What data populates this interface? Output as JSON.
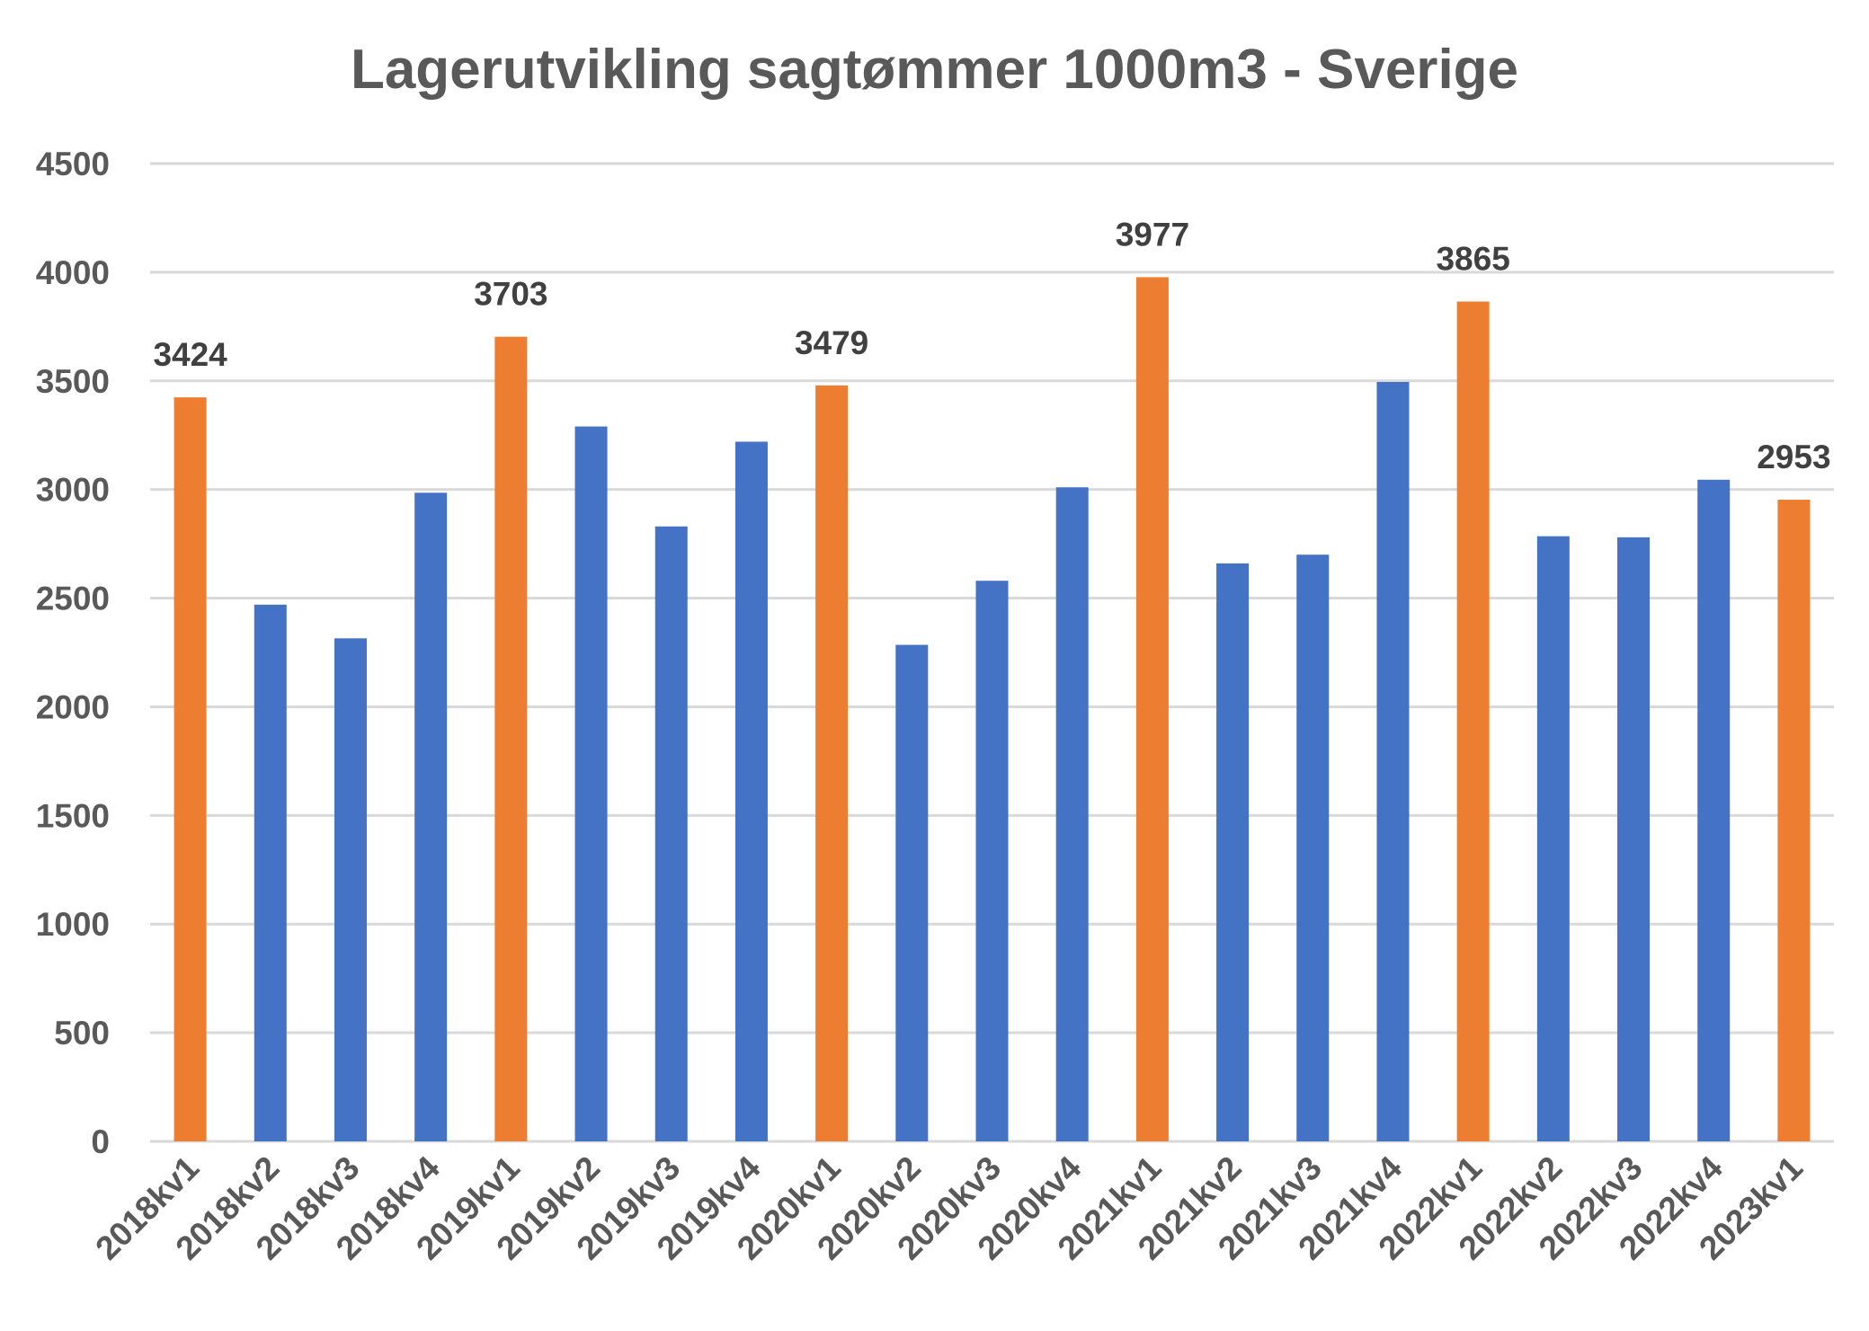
{
  "chart_data": {
    "type": "bar",
    "title": "Lagerutvikling sagtømmer 1000m3 - Sverige",
    "xlabel": "",
    "ylabel": "",
    "ylim": [
      0,
      4500
    ],
    "yticks": [
      0,
      500,
      1000,
      1500,
      2000,
      2500,
      3000,
      3500,
      4000,
      4500
    ],
    "grid": true,
    "legend": "none",
    "categories": [
      "2018kv1",
      "2018kv2",
      "2018kv3",
      "2018kv4",
      "2019kv1",
      "2019kv2",
      "2019kv3",
      "2019kv4",
      "2020kv1",
      "2020kv2",
      "2020kv3",
      "2020kv4",
      "2021kv1",
      "2021kv2",
      "2021kv3",
      "2021kv4",
      "2022kv1",
      "2022kv2",
      "2022kv3",
      "2022kv4",
      "2023kv1"
    ],
    "values": [
      3424,
      2470,
      2315,
      2985,
      3703,
      3290,
      2830,
      3220,
      3479,
      2285,
      2580,
      3010,
      3977,
      2660,
      2700,
      3495,
      3865,
      2785,
      2780,
      3045,
      2953
    ],
    "highlight": [
      true,
      false,
      false,
      false,
      true,
      false,
      false,
      false,
      true,
      false,
      false,
      false,
      true,
      false,
      false,
      false,
      true,
      false,
      false,
      false,
      true
    ],
    "data_labels": [
      "3424",
      "",
      "",
      "",
      "3703",
      "",
      "",
      "",
      "3479",
      "",
      "",
      "",
      "3977",
      "",
      "",
      "",
      "3865",
      "",
      "",
      "",
      "2953"
    ],
    "colors": {
      "default": "#4472C4",
      "highlight": "#ED7D31",
      "grid": "#D9D9D9",
      "text": "#595959",
      "label": "#404040"
    }
  }
}
